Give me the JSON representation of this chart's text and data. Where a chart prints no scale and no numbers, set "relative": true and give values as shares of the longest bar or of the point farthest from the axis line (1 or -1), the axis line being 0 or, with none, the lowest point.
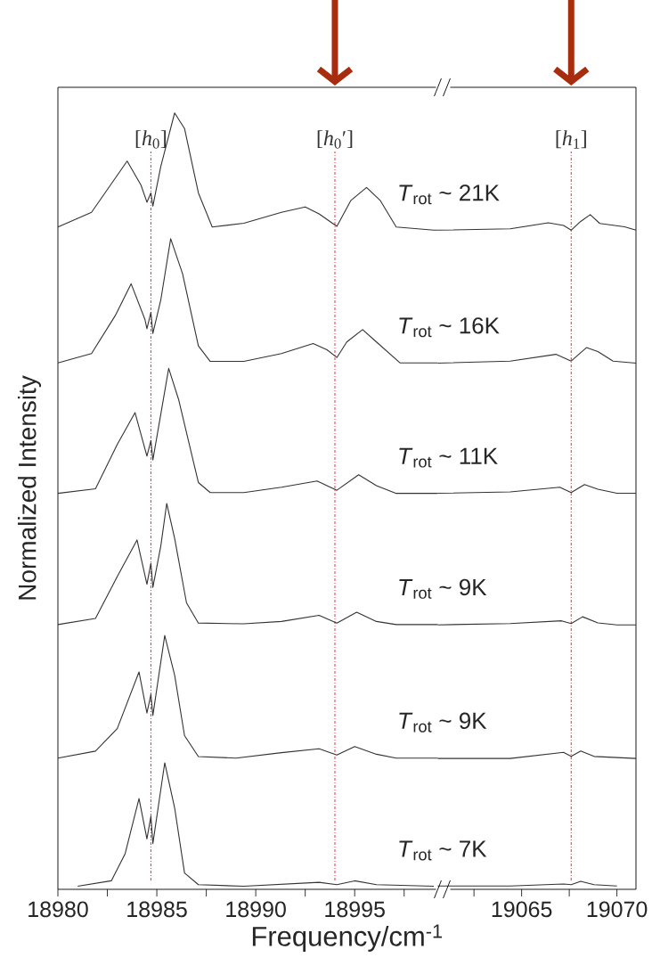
{
  "chart_data": [
    {
      "type": "line",
      "relative": true,
      "xlabel": "Frequency/cm$^{-1}$",
      "ylabel": "Normalized Intensity",
      "xlim": [
        18980,
        18999.2
      ],
      "xticks": [
        18980,
        {
          "value": 18982.5,
          "label": null
        },
        18985,
        {
          "value": 18987.5,
          "label": null
        },
        18990,
        {
          "value": 18992.5,
          "label": null
        },
        18995,
        {
          "value": 18997.5,
          "label": null
        }
      ],
      "marker": "none",
      "line_style": "solid",
      "ref_lines": [
        {
          "axis": "x",
          "value": 18984.7,
          "label": "[*h*$_{0}$]",
          "color": "#e8141c",
          "line_style": "dotted"
        },
        {
          "axis": "x",
          "value": 18994.0,
          "label": "[*h*$_{0}$′]",
          "color": "#e8141c",
          "line_style": "dotted"
        }
      ],
      "series": [
        {
          "name": "*T*$_{rot}$ ~ 21K",
          "color": "#333333",
          "x": [
            18980,
            18981.7,
            18983.5,
            18984.2,
            18984.5,
            18984.7,
            18984.8,
            18985.2,
            18985.9,
            18986.4,
            18987.1,
            18987.8,
            18989.4,
            18991.3,
            18992.5,
            18993.2,
            18994.1,
            18994.8,
            18995.6,
            18996.3,
            18997.1,
            18999.0,
            18999.2
          ],
          "values": [
            0.853,
            0.872,
            0.938,
            0.907,
            0.885,
            0.897,
            0.88,
            0.931,
            1.0,
            0.98,
            0.897,
            0.853,
            0.858,
            0.872,
            0.879,
            0.87,
            0.854,
            0.887,
            0.904,
            0.887,
            0.853,
            0.849,
            0.849
          ]
        },
        {
          "name": "*T*$_{rot}$ ~ 16K",
          "color": "#333333",
          "x": [
            18980,
            18981.7,
            18982.9,
            18983.7,
            18984.4,
            18984.5,
            18984.7,
            18984.8,
            18985.2,
            18985.7,
            18986.3,
            18987.1,
            18987.7,
            18989.4,
            18991.3,
            18992.9,
            18993.6,
            18994.1,
            18994.6,
            18995.4,
            18996.1,
            18997.3,
            18999.2
          ],
          "values": [
            0.678,
            0.69,
            0.739,
            0.78,
            0.734,
            0.722,
            0.743,
            0.716,
            0.759,
            0.838,
            0.793,
            0.7,
            0.68,
            0.68,
            0.69,
            0.703,
            0.695,
            0.685,
            0.705,
            0.721,
            0.705,
            0.678,
            0.678
          ]
        },
        {
          "name": "*T*$_{rot}$ ~ 11K",
          "color": "#333333",
          "x": [
            18980,
            18981.9,
            18983.0,
            18983.9,
            18984.5,
            18984.7,
            18984.8,
            18985.2,
            18985.6,
            18986.1,
            18987.1,
            18987.7,
            18989.4,
            18991.3,
            18993.1,
            18994.1,
            18995.2,
            18996.1,
            18997.1,
            18999.2
          ],
          "values": [
            0.51,
            0.516,
            0.573,
            0.614,
            0.558,
            0.578,
            0.553,
            0.612,
            0.671,
            0.631,
            0.524,
            0.511,
            0.511,
            0.518,
            0.526,
            0.514,
            0.534,
            0.52,
            0.51,
            0.51
          ]
        },
        {
          "name": "*T*$_{rot}$ ~ 9K",
          "color": "#333333",
          "x": [
            18980,
            18981.9,
            18983.0,
            18984.0,
            18984.5,
            18984.7,
            18984.8,
            18985.2,
            18985.5,
            18985.9,
            18986.5,
            18987.1,
            18989.4,
            18991.3,
            18993.2,
            18994.1,
            18995.1,
            18996.1,
            18997.1,
            18999.2
          ],
          "values": [
            0.341,
            0.349,
            0.403,
            0.45,
            0.393,
            0.42,
            0.389,
            0.442,
            0.497,
            0.452,
            0.369,
            0.343,
            0.342,
            0.345,
            0.353,
            0.343,
            0.357,
            0.345,
            0.341,
            0.341
          ]
        },
        {
          "name": "*T*$_{rot}$ ~ 9K",
          "color": "#333333",
          "x": [
            18980,
            18981.9,
            18983.0,
            18984.1,
            18984.5,
            18984.7,
            18984.8,
            18985.4,
            18985.9,
            18986.4,
            18987.1,
            18989.0,
            18991.3,
            18993.2,
            18994.1,
            18995.0,
            18996.1,
            18997.1,
            18999.2
          ],
          "values": [
            0.169,
            0.178,
            0.207,
            0.28,
            0.227,
            0.251,
            0.224,
            0.327,
            0.276,
            0.198,
            0.171,
            0.169,
            0.176,
            0.181,
            0.173,
            0.184,
            0.174,
            0.169,
            0.169
          ]
        },
        {
          "name": "*T*$_{rot}$ ~ 7K",
          "color": "#333333",
          "x": [
            18981.0,
            18982.7,
            18983.4,
            18984.1,
            18984.5,
            18984.7,
            18984.8,
            18985.4,
            18985.9,
            18986.4,
            18987.1,
            18989.4,
            18993.2,
            18994.1,
            18995.0,
            18996.1,
            18999.0
          ],
          "values": [
            0.004,
            0.011,
            0.046,
            0.117,
            0.065,
            0.094,
            0.059,
            0.163,
            0.105,
            0.021,
            0.006,
            0.004,
            0.009,
            0.006,
            0.011,
            0.006,
            0.004
          ]
        }
      ]
    },
    {
      "type": "line",
      "relative": true,
      "xlim": [
        19060.6,
        19071
      ],
      "xticks": [
        {
          "value": 19062.5,
          "label": null
        },
        19065,
        {
          "value": 19067.5,
          "label": null
        },
        19070
      ],
      "marker": "none",
      "line_style": "solid",
      "ref_lines": [
        {
          "axis": "x",
          "value": 19067.6,
          "label": "[*h*$_{1}$]",
          "color": "#e8141c",
          "line_style": "dotted"
        }
      ],
      "series": [
        {
          "color": "#333333",
          "x": [
            19060.6,
            19064.4,
            19066.4,
            19067.2,
            19067.6,
            19068.1,
            19068.6,
            19069.1,
            19070.4,
            19071.0
          ],
          "values": [
            0.977,
            0.979,
            0.988,
            0.984,
            0.977,
            0.99,
            1.0,
            0.987,
            0.982,
            0.977
          ]
        },
        {
          "color": "#333333",
          "x": [
            19060.6,
            19064.4,
            19066.8,
            19067.6,
            19068.4,
            19069.0,
            19069.8,
            19071.0
          ],
          "values": [
            0.78,
            0.783,
            0.793,
            0.783,
            0.803,
            0.797,
            0.783,
            0.78
          ]
        },
        {
          "color": "#333333",
          "x": [
            19060.6,
            19064.4,
            19067.0,
            19067.6,
            19068.3,
            19069.0,
            19070.0,
            19071.0
          ],
          "values": [
            0.587,
            0.589,
            0.596,
            0.588,
            0.6,
            0.593,
            0.587,
            0.587
          ]
        },
        {
          "color": "#333333",
          "x": [
            19060.6,
            19064.4,
            19067.1,
            19067.6,
            19068.2,
            19069.0,
            19070.0,
            19071.0
          ],
          "values": [
            0.392,
            0.394,
            0.398,
            0.394,
            0.404,
            0.395,
            0.392,
            0.392
          ]
        },
        {
          "color": "#333333",
          "x": [
            19060.6,
            19064.4,
            19067.2,
            19067.6,
            19068.1,
            19068.8,
            19071.0
          ],
          "values": [
            0.194,
            0.194,
            0.203,
            0.197,
            0.205,
            0.197,
            0.194
          ]
        },
        {
          "color": "#333333",
          "x": [
            19060.6,
            19064.4,
            19067.2,
            19067.6,
            19068.1,
            19068.8,
            19070.0
          ],
          "values": [
            0.005,
            0.005,
            0.008,
            0.007,
            0.012,
            0.007,
            0.005
          ]
        }
      ]
    }
  ]
}
